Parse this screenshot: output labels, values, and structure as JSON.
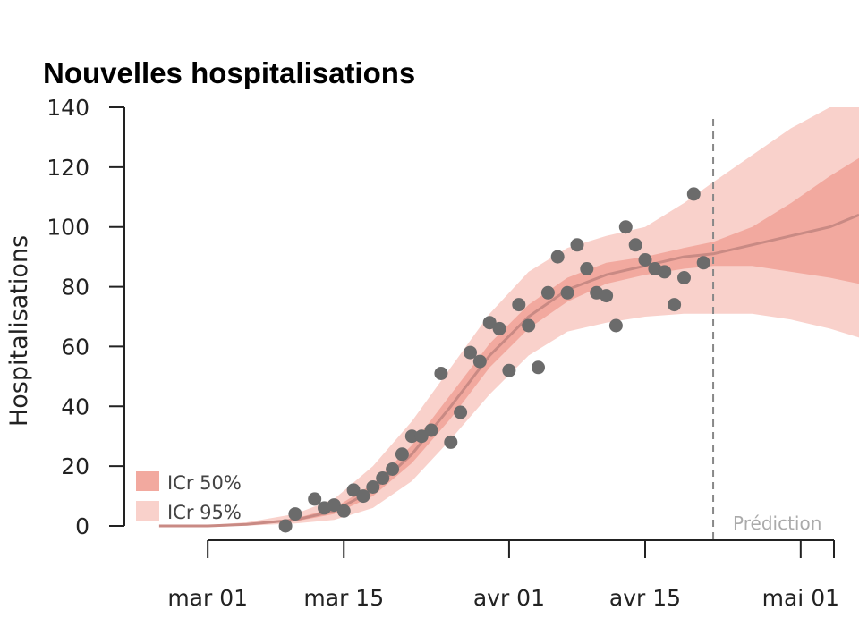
{
  "chart_data": {
    "type": "line",
    "title": "Nouvelles hospitalisations",
    "ylabel": "Hospitalisations",
    "xlabel": "",
    "ylim": [
      0,
      140
    ],
    "yticks": [
      0,
      20,
      40,
      60,
      80,
      100,
      120,
      140
    ],
    "xlim": [
      "2020-02-24",
      "2020-05-07"
    ],
    "xticks": [
      {
        "date": "2020-03-01",
        "label": "mar 01"
      },
      {
        "date": "2020-03-15",
        "label": "mar 15"
      },
      {
        "date": "2020-04-01",
        "label": "avr 01"
      },
      {
        "date": "2020-04-15",
        "label": "avr 15"
      },
      {
        "date": "2020-05-01",
        "label": "mai 01"
      }
    ],
    "prediction_start": "2020-04-22",
    "prediction_label": "Prédiction",
    "legend": {
      "placement": "bottom-left",
      "entries": [
        {
          "label": "ICr 50%",
          "color": "#f2a99f"
        },
        {
          "label": "ICr 95%",
          "color": "#f9d1cb"
        }
      ]
    },
    "colors": {
      "ci95": "#f9d1cb",
      "ci50": "#f2a99f",
      "median": "#c98a84",
      "points": "#6b6b6b",
      "prediction_line": "#888888"
    },
    "band": {
      "x": [
        "2020-02-25",
        "2020-03-01",
        "2020-03-05",
        "2020-03-10",
        "2020-03-14",
        "2020-03-18",
        "2020-03-22",
        "2020-03-26",
        "2020-03-30",
        "2020-04-03",
        "2020-04-07",
        "2020-04-11",
        "2020-04-15",
        "2020-04-19",
        "2020-04-22",
        "2020-04-26",
        "2020-04-30",
        "2020-05-04",
        "2020-05-07"
      ],
      "median": [
        0,
        0,
        0.5,
        2,
        5,
        12,
        24,
        40,
        57,
        70,
        79,
        84,
        87,
        90,
        91,
        94,
        97,
        100,
        104
      ],
      "lo50": [
        0,
        0,
        0.3,
        1.5,
        4,
        10,
        21,
        36,
        53,
        66,
        75,
        81,
        84,
        86,
        87,
        87,
        85,
        83,
        81
      ],
      "hi50": [
        0,
        0.1,
        0.7,
        2.5,
        6,
        14,
        27,
        44,
        61,
        74,
        83,
        88,
        90,
        93,
        95,
        100,
        108,
        117,
        123
      ],
      "lo95": [
        0,
        0,
        0.1,
        0.8,
        2,
        6,
        15,
        29,
        44,
        57,
        65,
        68,
        70,
        71,
        71,
        71,
        69,
        66,
        63
      ],
      "hi95": [
        0,
        0.3,
        1.2,
        4,
        9,
        20,
        35,
        53,
        71,
        85,
        93,
        97,
        100,
        108,
        115,
        124,
        133,
        142,
        150
      ]
    },
    "points": {
      "x": [
        "2020-03-09",
        "2020-03-10",
        "2020-03-12",
        "2020-03-13",
        "2020-03-14",
        "2020-03-15",
        "2020-03-16",
        "2020-03-17",
        "2020-03-18",
        "2020-03-19",
        "2020-03-20",
        "2020-03-21",
        "2020-03-22",
        "2020-03-23",
        "2020-03-24",
        "2020-03-25",
        "2020-03-26",
        "2020-03-27",
        "2020-03-28",
        "2020-03-29",
        "2020-03-30",
        "2020-03-31",
        "2020-04-01",
        "2020-04-02",
        "2020-04-03",
        "2020-04-04",
        "2020-04-05",
        "2020-04-06",
        "2020-04-07",
        "2020-04-08",
        "2020-04-09",
        "2020-04-10",
        "2020-04-11",
        "2020-04-12",
        "2020-04-13",
        "2020-04-14",
        "2020-04-15",
        "2020-04-16",
        "2020-04-17",
        "2020-04-18",
        "2020-04-19",
        "2020-04-20",
        "2020-04-21"
      ],
      "y": [
        0,
        4,
        9,
        6,
        7,
        5,
        12,
        10,
        13,
        16,
        19,
        24,
        30,
        30,
        32,
        51,
        28,
        38,
        58,
        55,
        68,
        66,
        52,
        74,
        67,
        53,
        78,
        90,
        78,
        94,
        86,
        78,
        77,
        67,
        100,
        94,
        89,
        86,
        85,
        74,
        83,
        111,
        88
      ]
    }
  }
}
